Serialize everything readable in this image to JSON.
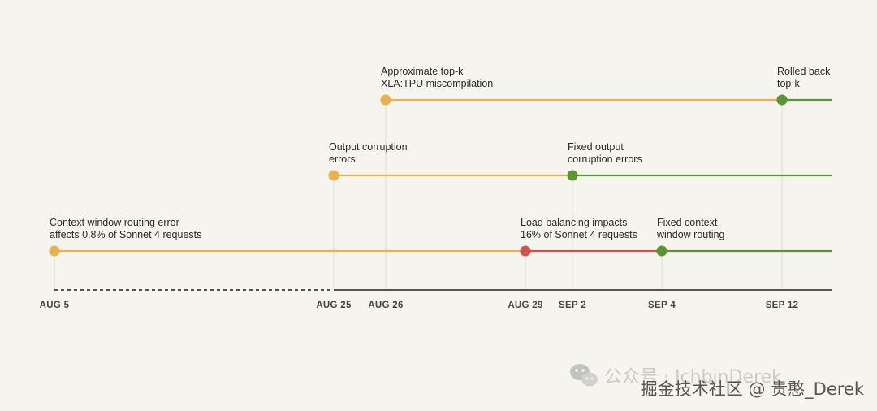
{
  "colors": {
    "background": "#f5f4ee",
    "issue": "#e9b251",
    "fixed": "#5b9432",
    "severe": "#d2524e",
    "axis": "#555550",
    "guide": "#dedcd4"
  },
  "axis": {
    "ticks": [
      {
        "id": "aug5",
        "label": "AUG 5"
      },
      {
        "id": "aug25",
        "label": "AUG 25"
      },
      {
        "id": "aug26",
        "label": "AUG 26"
      },
      {
        "id": "aug29",
        "label": "AUG 29"
      },
      {
        "id": "sep2",
        "label": "SEP 2"
      },
      {
        "id": "sep4",
        "label": "SEP 4"
      },
      {
        "id": "sep12",
        "label": "SEP 12"
      }
    ]
  },
  "lanes": [
    {
      "id": "top-k",
      "events": [
        {
          "date": "aug26",
          "status": "issue",
          "label": [
            "Approximate top-k",
            "XLA:TPU miscompilation"
          ]
        },
        {
          "date": "sep12",
          "status": "fixed",
          "label": [
            "Rolled back",
            "top-k"
          ]
        }
      ]
    },
    {
      "id": "output-corruption",
      "events": [
        {
          "date": "aug25",
          "status": "issue",
          "label": [
            "Output corruption",
            "errors"
          ]
        },
        {
          "date": "sep2",
          "status": "fixed",
          "label": [
            "Fixed output",
            "corruption errors"
          ]
        }
      ]
    },
    {
      "id": "context-routing",
      "events": [
        {
          "date": "aug5",
          "status": "issue",
          "label": [
            "Context window routing error",
            "affects 0.8% of Sonnet 4 requests"
          ]
        },
        {
          "date": "aug29",
          "status": "severe",
          "label": [
            "Load balancing impacts",
            "16% of Sonnet 4 requests"
          ]
        },
        {
          "date": "sep4",
          "status": "fixed",
          "label": [
            "Fixed context",
            "window routing"
          ]
        }
      ]
    }
  ],
  "watermark": {
    "wechat": "公众号 · IchbinDerek",
    "credit": "掘金技术社区 @ 贵憨_Derek"
  }
}
